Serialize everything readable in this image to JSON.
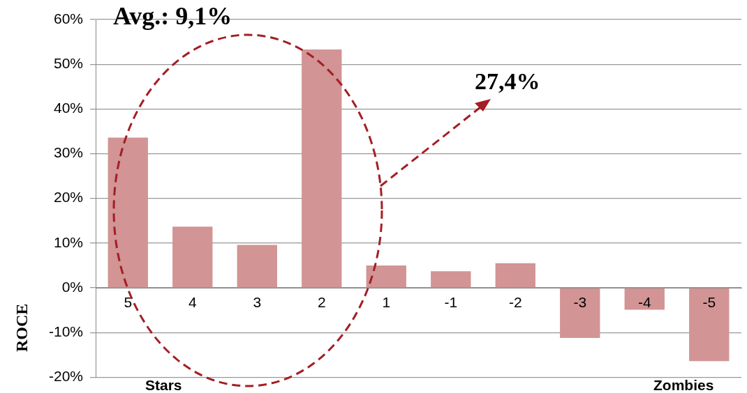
{
  "chart_data": {
    "type": "bar",
    "title": "Avg.: 9,1%",
    "ylabel": "ROCE",
    "categories": [
      "5",
      "4",
      "3",
      "2",
      "1",
      "-1",
      "-2",
      "-3",
      "-4",
      "-5"
    ],
    "values": [
      33.6,
      13.7,
      9.6,
      53.3,
      5.0,
      3.7,
      5.5,
      -11.2,
      -4.9,
      -16.4
    ],
    "color": "#d29494",
    "ylim": [
      -20,
      60
    ],
    "yticks": [
      {
        "value": -20,
        "label": "-20%"
      },
      {
        "value": -10,
        "label": "-10%"
      },
      {
        "value": 0,
        "label": "0%"
      },
      {
        "value": 10,
        "label": "10%"
      },
      {
        "value": 20,
        "label": "20%"
      },
      {
        "value": 30,
        "label": "30%"
      },
      {
        "value": 40,
        "label": "40%"
      },
      {
        "value": 50,
        "label": "50%"
      },
      {
        "value": 60,
        "label": "60%"
      }
    ],
    "grid": "y",
    "annotations": [
      "27,4%",
      "Stars",
      "Zombies"
    ]
  }
}
